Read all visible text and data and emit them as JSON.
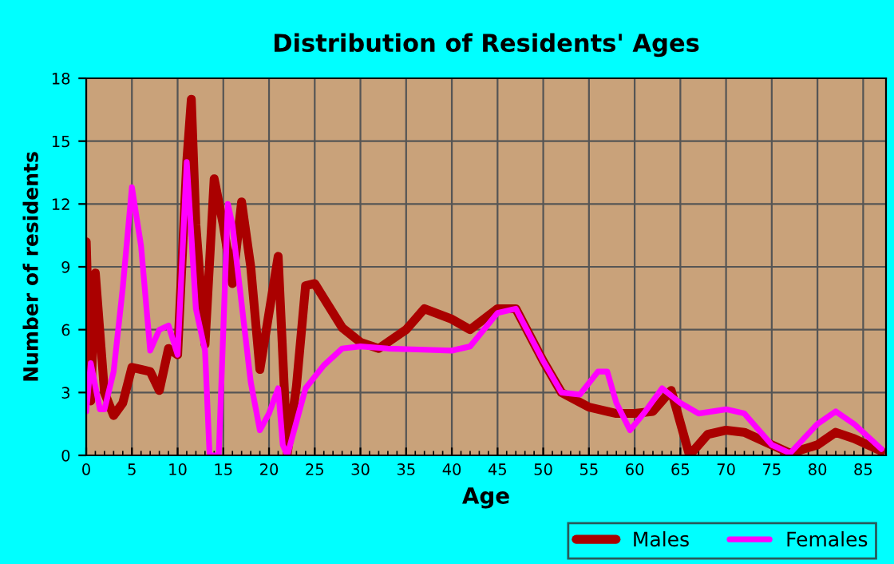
{
  "chart_data": {
    "type": "line",
    "title": "Distribution of Residents' Ages",
    "xlabel": "Age",
    "ylabel": "Number of residents",
    "xlim": [
      0,
      87.5
    ],
    "xticks": [
      0,
      5,
      10,
      15,
      20,
      25,
      30,
      35,
      40,
      45,
      50,
      55,
      60,
      65,
      70,
      75,
      80,
      85
    ],
    "ylim": [
      0,
      18
    ],
    "yticks": [
      0,
      3,
      6,
      9,
      12,
      15,
      18
    ],
    "grid": true,
    "legend": "bottom right",
    "series": [
      {
        "name": "Males",
        "color": "#aa0000",
        "x": [
          0,
          0.5,
          1,
          2,
          3,
          4,
          5,
          6,
          7,
          8,
          9,
          10,
          11,
          11.5,
          12,
          13,
          14,
          15,
          16,
          17,
          18,
          19,
          21,
          22,
          23,
          24,
          25,
          26,
          28,
          30,
          32,
          35,
          37,
          40,
          42,
          45,
          47,
          50,
          52,
          55,
          58,
          60,
          62,
          64,
          66,
          68,
          70,
          72,
          75,
          77,
          80,
          82,
          84,
          87
        ],
        "values": [
          10.2,
          2.6,
          8.7,
          3,
          1.9,
          2.5,
          4.2,
          4.1,
          4,
          3.1,
          5.1,
          4.8,
          14,
          17,
          11,
          5.3,
          13.2,
          11,
          8.2,
          12.1,
          9,
          4.1,
          9.5,
          0.1,
          3.3,
          8.1,
          8.2,
          7.5,
          6.1,
          5.4,
          5.1,
          6,
          7,
          6.5,
          6,
          7,
          7,
          4.5,
          3,
          2.3,
          2,
          2,
          2.1,
          3.1,
          0,
          1,
          1.2,
          1.1,
          0.5,
          0.1,
          0.5,
          1.1,
          0.8,
          0.2
        ]
      },
      {
        "name": "Females",
        "color": "#ff00ff",
        "x": [
          0,
          0.5,
          1.5,
          2,
          3,
          4,
          5,
          6,
          7,
          8,
          9,
          10,
          11,
          12,
          13,
          13.5,
          14.5,
          15.5,
          16,
          18,
          19,
          20,
          21,
          21.5,
          22,
          24,
          26,
          28,
          30,
          33,
          40,
          42,
          45,
          47,
          50,
          52,
          54,
          56,
          57,
          58,
          59.5,
          61,
          63,
          65,
          67,
          70,
          72,
          75,
          77,
          80,
          82,
          84,
          87
        ],
        "values": [
          2.1,
          4.4,
          2.2,
          2.2,
          4,
          8,
          12.8,
          10,
          5,
          6,
          6.2,
          4.8,
          14,
          7,
          5,
          0,
          0,
          12,
          11,
          3.5,
          1.2,
          2,
          3.2,
          0.5,
          0,
          3.2,
          4.3,
          5.1,
          5.2,
          5.1,
          5,
          5.2,
          6.8,
          7,
          4.5,
          3,
          2.9,
          4,
          4,
          2.5,
          1.2,
          2,
          3.2,
          2.5,
          2,
          2.2,
          2,
          0.5,
          0.1,
          1.5,
          2.1,
          1.5,
          0.3
        ]
      }
    ]
  }
}
